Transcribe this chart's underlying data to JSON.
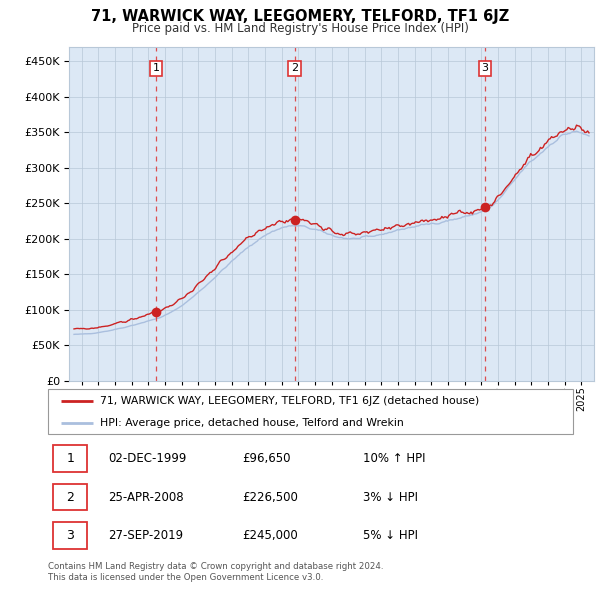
{
  "title": "71, WARWICK WAY, LEEGOMERY, TELFORD, TF1 6JZ",
  "subtitle": "Price paid vs. HM Land Registry's House Price Index (HPI)",
  "sale_dates_idx": [
    59,
    159,
    296
  ],
  "sale_prices": [
    96650,
    226500,
    245000
  ],
  "sale_labels": [
    "1",
    "2",
    "3"
  ],
  "legend_line1": "71, WARWICK WAY, LEEGOMERY, TELFORD, TF1 6JZ (detached house)",
  "legend_line2": "HPI: Average price, detached house, Telford and Wrekin",
  "table_rows": [
    [
      "1",
      "02-DEC-1999",
      "£96,650",
      "10% ↑ HPI"
    ],
    [
      "2",
      "25-APR-2008",
      "£226,500",
      "3% ↓ HPI"
    ],
    [
      "3",
      "27-SEP-2019",
      "£245,000",
      "5% ↓ HPI"
    ]
  ],
  "footer": "Contains HM Land Registry data © Crown copyright and database right 2024.\nThis data is licensed under the Open Government Licence v3.0.",
  "hpi_color": "#aabfde",
  "property_color": "#cc2222",
  "dashed_color": "#dd3333",
  "bg_color": "#dce8f5",
  "grid_color": "#b8c8d8",
  "ylim": [
    0,
    470000
  ],
  "yticks": [
    0,
    50000,
    100000,
    150000,
    200000,
    250000,
    300000,
    350000,
    400000,
    450000
  ],
  "start_year": 1995,
  "end_year": 2025
}
